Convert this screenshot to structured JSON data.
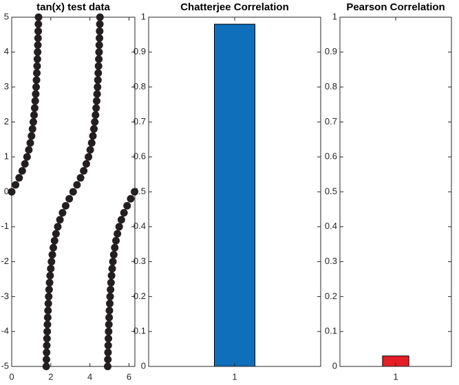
{
  "chart_data": [
    {
      "type": "scatter",
      "title": "tan(x) test data",
      "color": "#231f20",
      "x": [
        0,
        0.1974,
        0.3805,
        0.5404,
        0.6747,
        0.7854,
        0.8761,
        0.9505,
        1.0122,
        1.0637,
        1.1071,
        1.1442,
        1.176,
        1.2036,
        1.2278,
        1.249,
        1.2679,
        1.2847,
        1.2998,
        1.3135,
        1.3258,
        1.3371,
        1.3474,
        1.3569,
        1.3656,
        1.3734,
        1.7682,
        1.776,
        1.7847,
        1.7942,
        1.8045,
        1.8158,
        1.8281,
        1.8418,
        1.8569,
        1.8737,
        1.8926,
        1.9138,
        1.938,
        1.9656,
        1.9974,
        2.0345,
        2.0779,
        2.1294,
        2.1911,
        2.2655,
        2.3562,
        2.4669,
        2.6012,
        2.7611,
        2.9442,
        3.1416,
        3.339,
        3.5221,
        3.682,
        3.8163,
        3.927,
        4.0177,
        4.0921,
        4.1538,
        4.2053,
        4.2487,
        4.2858,
        4.3176,
        4.3452,
        4.3694,
        4.3906,
        4.4095,
        4.4263,
        4.4414,
        4.4551,
        4.4674,
        4.4787,
        4.489,
        4.4985,
        4.5072,
        4.515,
        4.9098,
        4.9176,
        4.9263,
        4.9358,
        4.9461,
        4.9574,
        4.9697,
        4.9834,
        4.9985,
        5.0153,
        5.0342,
        5.0554,
        5.0796,
        5.1072,
        5.139,
        5.1761,
        5.2195,
        5.271,
        5.3327,
        5.4071,
        5.4978,
        5.6085,
        5.7428,
        5.9027,
        6.0858,
        6.2832
      ],
      "values": [
        0,
        0.2,
        0.4,
        0.6,
        0.8,
        1,
        1.2,
        1.4,
        1.6,
        1.8,
        2,
        2.2,
        2.4,
        2.6,
        2.8,
        3,
        3.2,
        3.4,
        3.6,
        3.8,
        4,
        4.2,
        4.4,
        4.6,
        4.8,
        5,
        -5,
        -4.8,
        -4.6,
        -4.4,
        -4.2,
        -4,
        -3.8,
        -3.6,
        -3.4,
        -3.2,
        -3,
        -2.8,
        -2.6,
        -2.4,
        -2.2,
        -2,
        -1.8,
        -1.6,
        -1.4,
        -1.2,
        -1,
        -0.8,
        -0.6,
        -0.4,
        -0.2,
        0,
        0.2,
        0.4,
        0.6,
        0.8,
        1,
        1.2,
        1.4,
        1.6,
        1.8,
        2,
        2.2,
        2.4,
        2.6,
        2.8,
        3,
        3.2,
        3.4,
        3.6,
        3.8,
        4,
        4.2,
        4.4,
        4.6,
        4.8,
        5,
        -5,
        -4.8,
        -4.6,
        -4.4,
        -4.2,
        -4,
        -3.8,
        -3.6,
        -3.4,
        -3.2,
        -3,
        -2.8,
        -2.6,
        -2.4,
        -2.2,
        -2,
        -1.8,
        -1.6,
        -1.4,
        -1.2,
        -1,
        -0.8,
        -0.6,
        -0.4,
        -0.2,
        0
      ],
      "xlim": [
        0,
        6.3
      ],
      "xticks": [
        0,
        2,
        4,
        6
      ],
      "ylim": [
        -5,
        5
      ],
      "yticks": [
        -5,
        -4,
        -3,
        -2,
        -1,
        0,
        1,
        2,
        3,
        4,
        5
      ]
    },
    {
      "type": "bar",
      "title": "Chatterjee Correlation",
      "categories": [
        "1"
      ],
      "values": [
        0.98
      ],
      "color": "#0f6fba",
      "ylim": [
        0,
        1
      ],
      "yticks": [
        0,
        0.1,
        0.2,
        0.3,
        0.4,
        0.5,
        0.6,
        0.7,
        0.8,
        0.9,
        1
      ]
    },
    {
      "type": "bar",
      "title": "Pearson Correlation",
      "categories": [
        "1"
      ],
      "values": [
        0.03
      ],
      "color": "#e41e26",
      "ylim": [
        0,
        1
      ],
      "yticks": [
        0,
        0.1,
        0.2,
        0.3,
        0.4,
        0.5,
        0.6,
        0.7,
        0.8,
        0.9,
        1
      ]
    }
  ]
}
